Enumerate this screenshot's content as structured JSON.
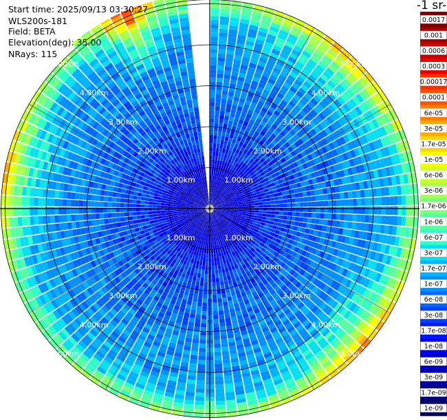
{
  "info": {
    "start_time": "Start time: 2025/09/13 03:30:27",
    "instrument": "WLS200s-181",
    "field": "Field: BETA",
    "elevation": "Elevation(deg): 35.00",
    "nrays": "NRays: 115"
  },
  "colorbar": {
    "title": "-1 sr-",
    "labels": [
      "0.0017",
      "0.001",
      "0.0006",
      "0.0003",
      "0.00017",
      "0.0001",
      "6e-05",
      "3e-05",
      "1.7e-05",
      "1e-05",
      "6e-06",
      "3e-06",
      "1.7e-06",
      "1e-06",
      "6e-07",
      "3e-07",
      "1.7e-07",
      "1e-07",
      "6e-08",
      "3e-08",
      "1.7e-08",
      "1e-08",
      "6e-09",
      "3e-09",
      "1.7e-09",
      "1e-09"
    ],
    "colors": [
      "#7f0000",
      "#a30000",
      "#c80000",
      "#ee0000",
      "#ff2c00",
      "#ff5500",
      "#ff7f00",
      "#ffaa00",
      "#ffd400",
      "#f6ff00",
      "#cdff29",
      "#a7ff50",
      "#7dff7a",
      "#55ffa2",
      "#2effc8",
      "#06e0ef",
      "#00b4ff",
      "#0090ff",
      "#0068ff",
      "#0040ff",
      "#0018ff",
      "#0000f1",
      "#0000cd",
      "#0000a8",
      "#000084",
      "#000060"
    ]
  },
  "chart_data": {
    "type": "heatmap",
    "projection": "polar (PPI)",
    "field": "BETA",
    "elevation_deg": 35.0,
    "nrays": 115,
    "range_rings_km": [
      1.0,
      2.0,
      3.0,
      4.0,
      5.0
    ],
    "ring_labels": [
      "1.00km",
      "2.00km",
      "3.00km",
      "4.00km",
      "5.00km"
    ],
    "azimuth_gap_deg": [
      -6,
      0
    ],
    "color_scale": "log",
    "value_range": [
      1e-09,
      0.0017
    ],
    "dominant_values_by_range_km": [
      {
        "range_km": 0.5,
        "value": 6e-09
      },
      {
        "range_km": 1.5,
        "value": 3e-08
      },
      {
        "range_km": 2.5,
        "value": 6e-08
      },
      {
        "range_km": 3.5,
        "value": 1e-07
      },
      {
        "range_km": 4.5,
        "value": 1.7e-07
      },
      {
        "range_km": 5.0,
        "value": 6e-07
      }
    ],
    "annotations": [
      "enhanced values (1e-06 to 1.7e-05) near far range in north-west, north-east and south-east sectors"
    ]
  }
}
